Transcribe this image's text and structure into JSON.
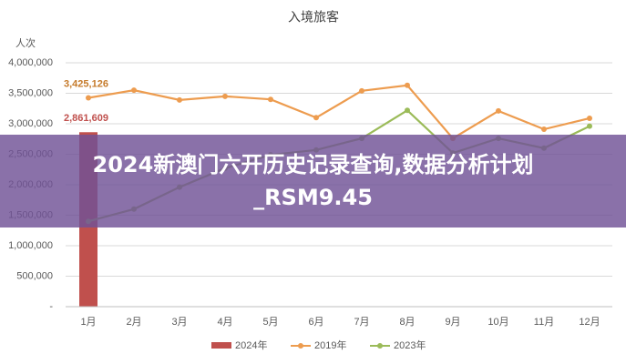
{
  "chart_data": {
    "type": "bar-line",
    "title": "入境旅客",
    "y_label": "人次",
    "categories": [
      "1月",
      "2月",
      "3月",
      "4月",
      "5月",
      "6月",
      "7月",
      "8月",
      "9月",
      "10月",
      "11月",
      "12月"
    ],
    "series": [
      {
        "name": "2024年",
        "type": "bar",
        "color": "#c0504d",
        "values": [
          2861609,
          null,
          null,
          null,
          null,
          null,
          null,
          null,
          null,
          null,
          null,
          null
        ],
        "value_labels": [
          "2,861,609",
          null,
          null,
          null,
          null,
          null,
          null,
          null,
          null,
          null,
          null,
          null
        ]
      },
      {
        "name": "2019年",
        "type": "line",
        "color": "#ed9c4f",
        "values": [
          3425126,
          3550000,
          3390000,
          3450000,
          3400000,
          3100000,
          3540000,
          3630000,
          2760000,
          3210000,
          2910000,
          3090000
        ],
        "value_labels": [
          "3,425,126",
          null,
          null,
          null,
          null,
          null,
          null,
          null,
          null,
          null,
          null,
          null
        ]
      },
      {
        "name": "2023年",
        "type": "line",
        "color": "#9bbb59",
        "values": [
          1400000,
          1600000,
          1960000,
          2270000,
          2490000,
          2570000,
          2760000,
          3220000,
          2520000,
          2760000,
          2600000,
          2960000
        ]
      }
    ],
    "ylim": [
      0,
      4000000
    ],
    "yticks": [
      {
        "value": 0,
        "label": "-"
      },
      {
        "value": 500000,
        "label": "500,000"
      },
      {
        "value": 1000000,
        "label": "1,000,000"
      },
      {
        "value": 1500000,
        "label": "1,500,000"
      },
      {
        "value": 2000000,
        "label": "2,000,000"
      },
      {
        "value": 2500000,
        "label": "2,500,000"
      },
      {
        "value": 3000000,
        "label": "3,000,000"
      },
      {
        "value": 3500000,
        "label": "3,500,000"
      },
      {
        "value": 4000000,
        "label": "4,000,000"
      }
    ],
    "grid": true,
    "legend": "bottom"
  },
  "overlay": {
    "text_line1": "2024新澳门六开历史记录查询,数据分析计划",
    "text_line2": "_RSM9.45"
  }
}
